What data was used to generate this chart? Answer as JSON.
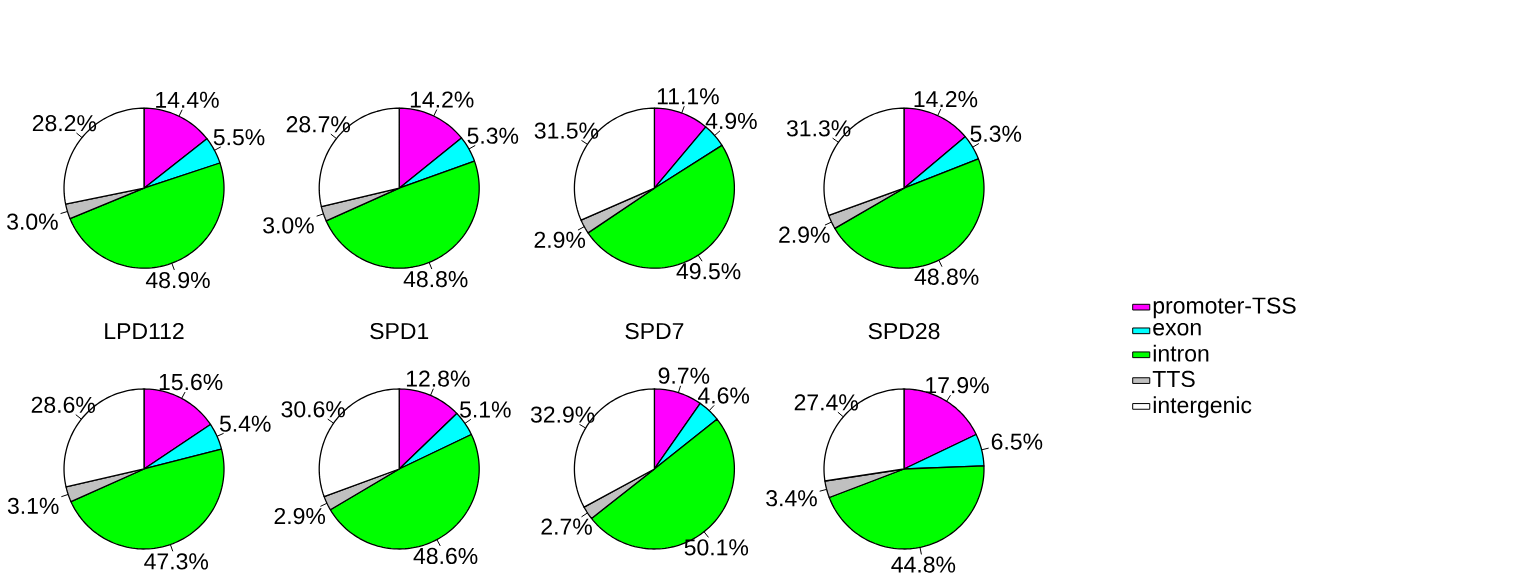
{
  "chart_data": [
    {
      "type": "pie",
      "categories": [
        null,
        null,
        null,
        null,
        null
      ],
      "values": [
        14.4,
        5.5,
        48.9,
        3.0,
        28.2
      ],
      "value_labels": [
        "14.4%",
        "5.5%",
        "48.9%",
        "3.0%",
        "28.2%"
      ],
      "colors": [
        "#ff00ff",
        "#00ffff",
        "#00ff00",
        "#c0c0c0",
        "#ffffff"
      ]
    },
    {
      "type": "pie",
      "categories": [
        null,
        null,
        null,
        null,
        null
      ],
      "values": [
        14.2,
        5.3,
        48.8,
        3.0,
        28.7
      ],
      "value_labels": [
        "14.2%",
        "5.3%",
        "48.8%",
        "3.0%",
        "28.7%"
      ],
      "colors": [
        "#ff00ff",
        "#00ffff",
        "#00ff00",
        "#c0c0c0",
        "#ffffff"
      ]
    },
    {
      "type": "pie",
      "categories": [
        null,
        null,
        null,
        null,
        null
      ],
      "values": [
        11.1,
        4.9,
        49.5,
        2.9,
        31.5
      ],
      "value_labels": [
        "11.1%",
        "4.9%",
        "49.5%",
        "2.9%",
        "31.5%"
      ],
      "colors": [
        "#ff00ff",
        "#00ffff",
        "#00ff00",
        "#c0c0c0",
        "#ffffff"
      ]
    },
    {
      "type": "pie",
      "categories": [
        "promoter-TSS",
        "exon",
        "intron",
        "TTS",
        "intergenic"
      ],
      "values": [
        14.2,
        5.3,
        48.8,
        2.9,
        31.3
      ],
      "value_labels": [
        "14.2%",
        "5.3%",
        "48.8%",
        "2.9%",
        "31.3%"
      ],
      "colors": [
        "#ff00ff",
        "#00ffff",
        "#00ff00",
        "#c0c0c0",
        "#ffffff"
      ],
      "legend": "right"
    },
    {
      "type": "pie",
      "title": "LPD112",
      "categories": [
        null,
        null,
        null,
        null,
        null
      ],
      "values": [
        15.6,
        5.4,
        47.3,
        3.1,
        28.6
      ],
      "value_labels": [
        "15.6%",
        "5.4%",
        "47.3%",
        "3.1%",
        "28.6%"
      ],
      "colors": [
        "#ff00ff",
        "#00ffff",
        "#00ff00",
        "#c0c0c0",
        "#ffffff"
      ]
    },
    {
      "type": "pie",
      "title": "SPD1",
      "categories": [
        null,
        null,
        null,
        null,
        null
      ],
      "values": [
        12.8,
        5.1,
        48.6,
        2.9,
        30.6
      ],
      "value_labels": [
        "12.8%",
        "5.1%",
        "48.6%",
        "2.9%",
        "30.6%"
      ],
      "colors": [
        "#ff00ff",
        "#00ffff",
        "#00ff00",
        "#c0c0c0",
        "#ffffff"
      ]
    },
    {
      "type": "pie",
      "title": "SPD7",
      "categories": [
        null,
        null,
        null,
        null,
        null
      ],
      "values": [
        9.7,
        4.6,
        50.1,
        2.7,
        32.9
      ],
      "value_labels": [
        "9.7%",
        "4.6%",
        "50.1%",
        "2.7%",
        "32.9%"
      ],
      "colors": [
        "#ff00ff",
        "#00ffff",
        "#00ff00",
        "#c0c0c0",
        "#ffffff"
      ]
    },
    {
      "type": "pie",
      "title": "SPD28",
      "categories": [
        null,
        null,
        null,
        null,
        null
      ],
      "values": [
        17.9,
        6.5,
        44.8,
        3.4,
        27.4
      ],
      "value_labels": [
        "17.9%",
        "6.5%",
        "44.8%",
        "3.4%",
        "27.4%"
      ],
      "colors": [
        "#ff00ff",
        "#00ffff",
        "#00ff00",
        "#c0c0c0",
        "#ffffff"
      ]
    }
  ]
}
